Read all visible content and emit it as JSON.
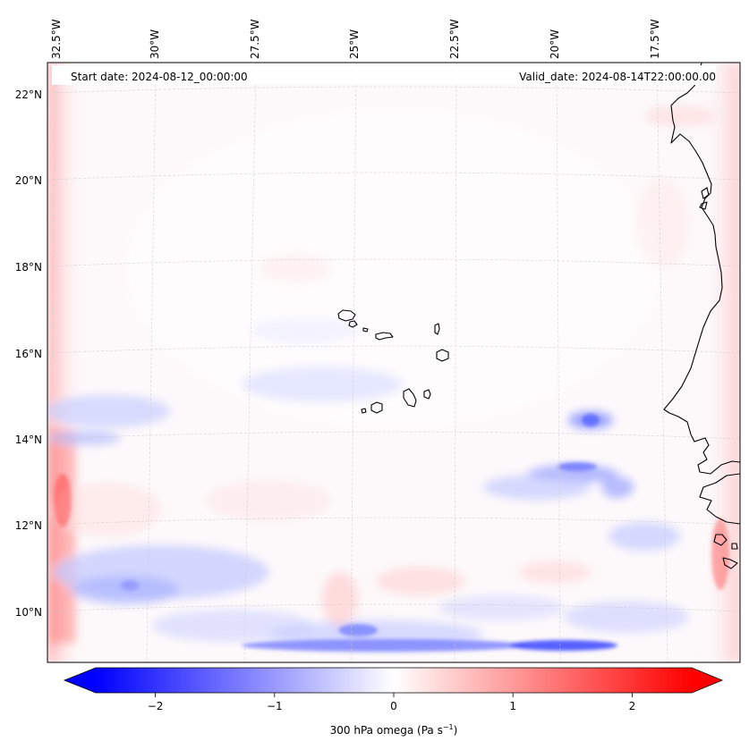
{
  "map": {
    "start_date_label": "Start date: 2024-08-12_00:00:00",
    "valid_date_label": "Valid_date: 2024-08-14T22:00:00.00",
    "lon_ticks": [
      "32.5°W",
      "30°W",
      "27.5°W",
      "25°W",
      "22.5°W",
      "20°W",
      "17.5°W"
    ],
    "lat_ticks": [
      "22°N",
      "20°N",
      "18°N",
      "16°N",
      "14°N",
      "12°N",
      "10°N"
    ],
    "coastline_color": "#000000",
    "gridline_color": "#c8c8c8"
  },
  "colorbar": {
    "tick_labels": [
      "−2",
      "−1",
      "0",
      "1",
      "2"
    ],
    "tick_values": [
      -2,
      -1,
      0,
      1,
      2
    ],
    "range": [
      -2.5,
      2.5
    ],
    "extend": "both",
    "colormap": "bwr",
    "label_main": "300 hPa omega (Pa s",
    "label_sup": "−1",
    "label_close": ")",
    "low_color": "#0000ff",
    "mid_color": "#ffffff",
    "high_color": "#ff0000"
  }
}
